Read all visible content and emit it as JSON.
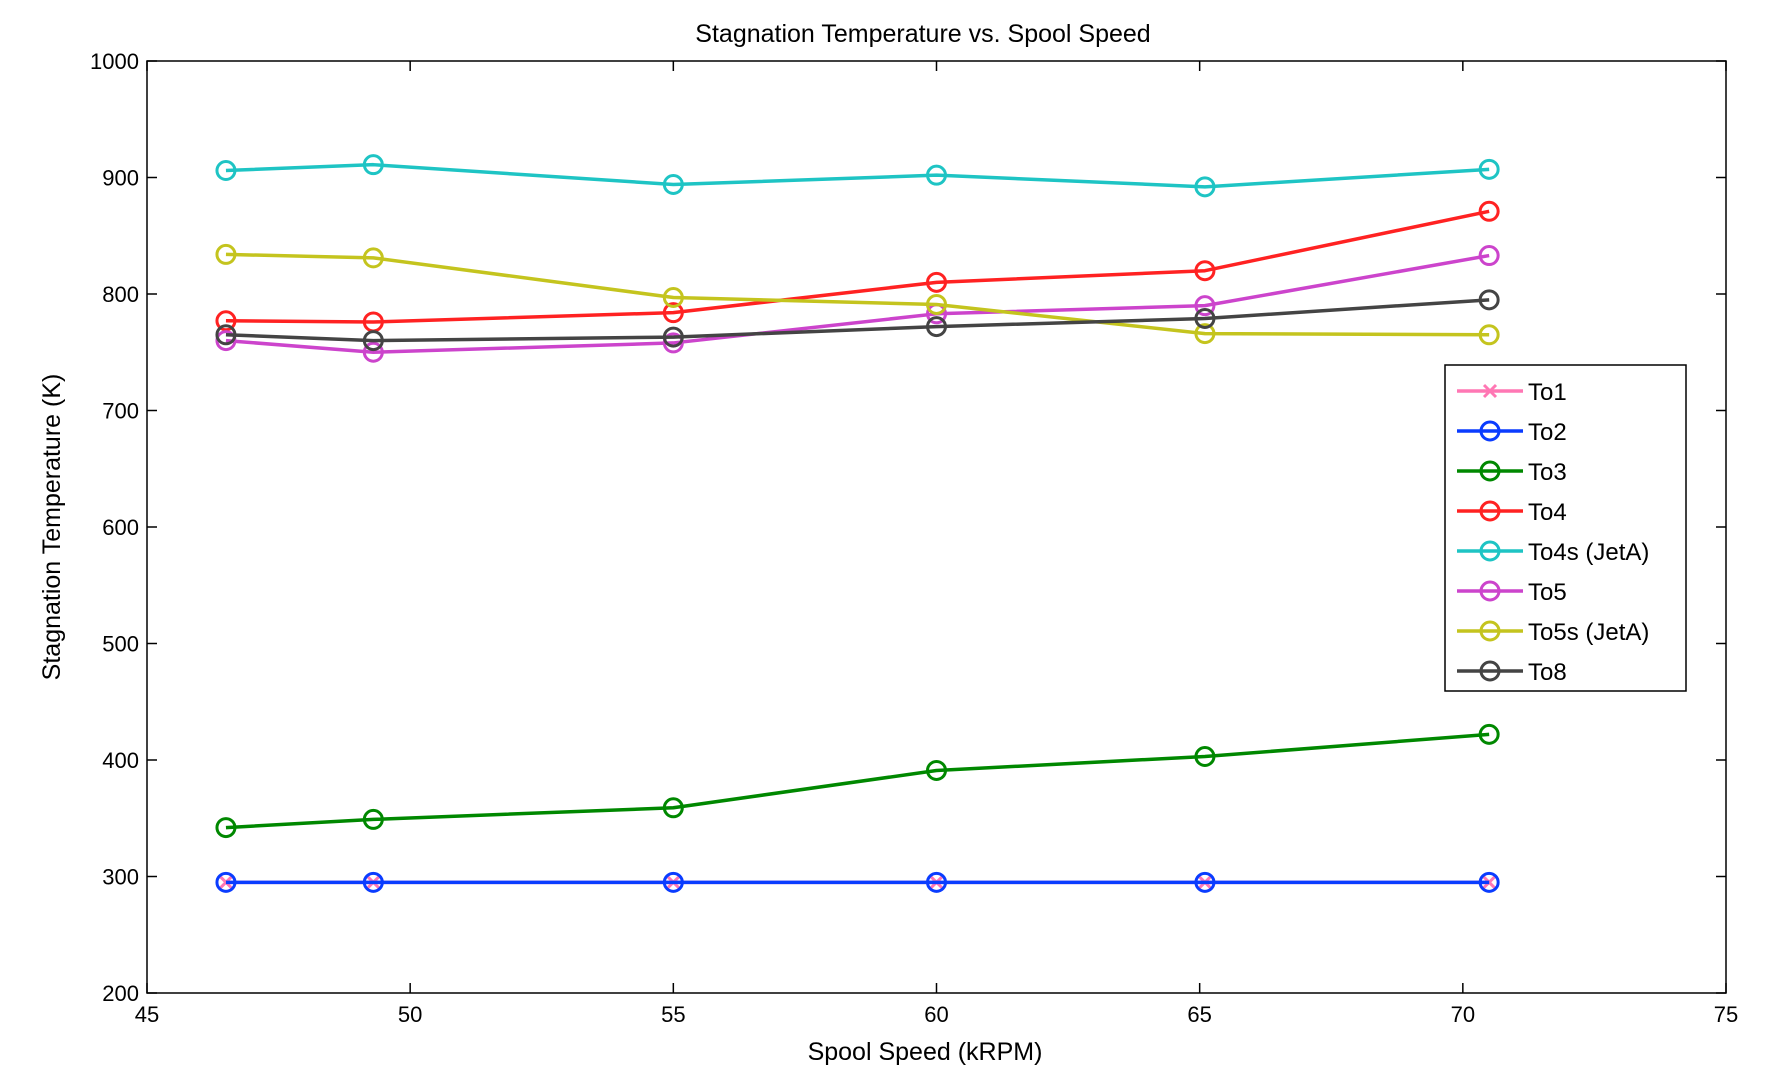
{
  "chart_data": {
    "type": "line",
    "title": "Stagnation Temperature vs. Spool Speed",
    "xlabel": "Spool Speed (kRPM)",
    "ylabel": "Stagnation Temperature (K)",
    "xlim": [
      45,
      75
    ],
    "ylim": [
      200,
      1000
    ],
    "xticks": [
      45,
      50,
      55,
      60,
      65,
      70,
      75
    ],
    "yticks": [
      200,
      300,
      400,
      500,
      600,
      700,
      800,
      900,
      1000
    ],
    "grid": false,
    "legend_position": "right",
    "x": [
      46.5,
      49.3,
      55.0,
      60.0,
      65.1,
      70.5
    ],
    "series": [
      {
        "name": "To1",
        "color": "#ff77b4",
        "marker": "x",
        "values": [
          295,
          295,
          295,
          295,
          295,
          295
        ]
      },
      {
        "name": "To2",
        "color": "#0a3cff",
        "marker": "o",
        "values": [
          295,
          295,
          295,
          295,
          295,
          295
        ]
      },
      {
        "name": "To3",
        "color": "#008800",
        "marker": "o",
        "values": [
          342,
          349,
          359,
          391,
          403,
          422
        ]
      },
      {
        "name": "To4",
        "color": "#ff2222",
        "marker": "o",
        "values": [
          777,
          776,
          784,
          810,
          820,
          871
        ]
      },
      {
        "name": "To4s (JetA)",
        "color": "#1ec4c4",
        "marker": "o",
        "values": [
          906,
          911,
          894,
          902,
          892,
          907
        ]
      },
      {
        "name": "To5",
        "color": "#cc44cc",
        "marker": "o",
        "values": [
          760,
          750,
          758,
          783,
          790,
          833
        ]
      },
      {
        "name": "To5s (JetA)",
        "color": "#c4c41e",
        "marker": "o",
        "values": [
          834,
          831,
          797,
          791,
          766,
          765
        ]
      },
      {
        "name": "To8",
        "color": "#444444",
        "marker": "o",
        "values": [
          765,
          760,
          763,
          772,
          779,
          795
        ]
      }
    ]
  }
}
